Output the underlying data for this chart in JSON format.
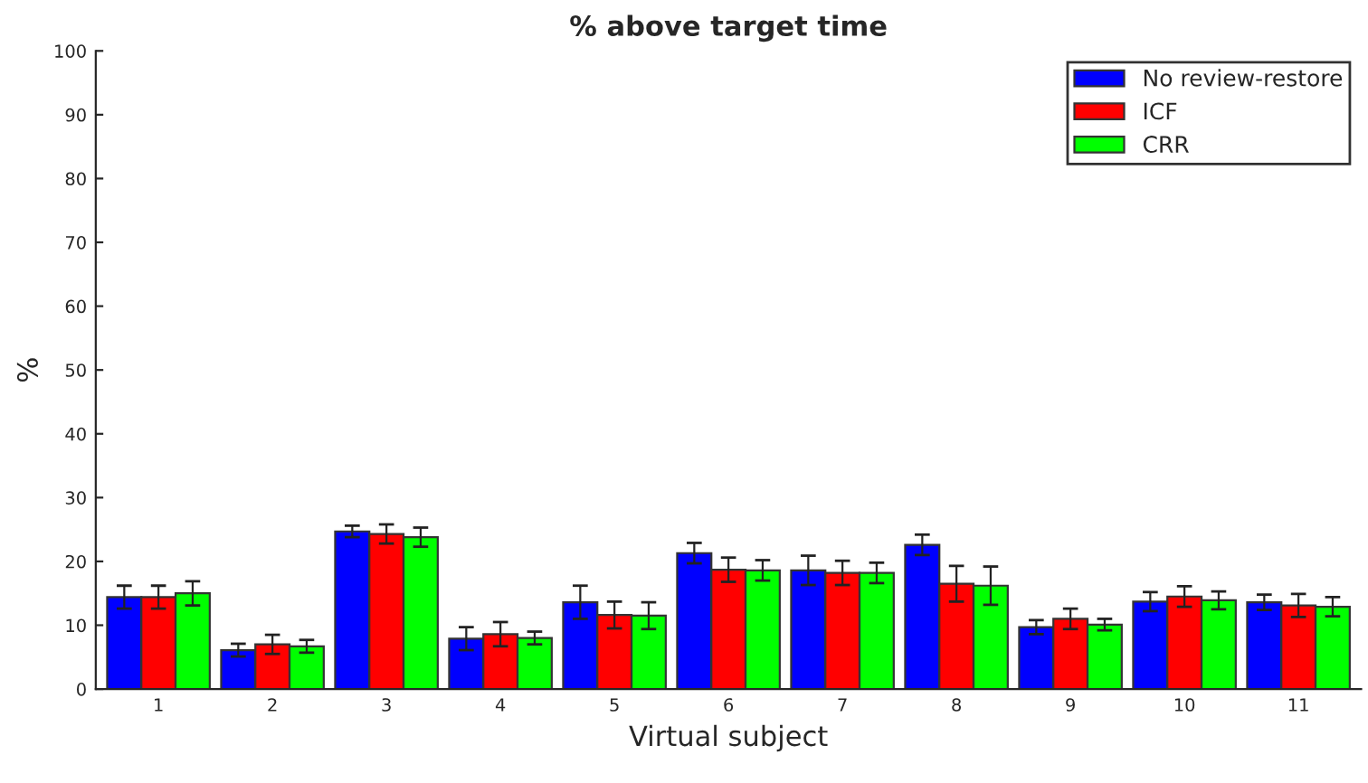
{
  "chart_data": {
    "type": "bar",
    "title": "% above target time",
    "xlabel": "Virtual subject",
    "ylabel": "%",
    "categories": [
      "1",
      "2",
      "3",
      "4",
      "5",
      "6",
      "7",
      "8",
      "9",
      "10",
      "11"
    ],
    "series": [
      {
        "name": "No review-restore",
        "color": "#0000ff",
        "values": [
          14.4,
          6.1,
          24.7,
          7.9,
          13.6,
          21.3,
          18.6,
          22.6,
          9.7,
          13.7,
          13.6
        ],
        "errors": [
          1.8,
          1.0,
          0.9,
          1.8,
          2.6,
          1.6,
          2.3,
          1.6,
          1.1,
          1.5,
          1.2
        ]
      },
      {
        "name": "ICF",
        "color": "#ff0000",
        "values": [
          14.4,
          7.0,
          24.3,
          8.6,
          11.6,
          18.7,
          18.2,
          16.5,
          11.0,
          14.5,
          13.1
        ],
        "errors": [
          1.8,
          1.5,
          1.5,
          1.9,
          2.1,
          1.9,
          1.9,
          2.8,
          1.6,
          1.6,
          1.8
        ]
      },
      {
        "name": "CRR",
        "color": "#00ff00",
        "values": [
          15.0,
          6.7,
          23.8,
          8.0,
          11.5,
          18.6,
          18.2,
          16.2,
          10.1,
          13.9,
          12.9
        ],
        "errors": [
          1.9,
          1.0,
          1.5,
          1.0,
          2.1,
          1.6,
          1.6,
          3.0,
          0.9,
          1.4,
          1.5
        ]
      }
    ],
    "ylim": [
      0,
      100
    ],
    "yticks": [
      0,
      10,
      20,
      30,
      40,
      50,
      60,
      70,
      80,
      90,
      100
    ],
    "grid": false,
    "legend": "top right"
  }
}
